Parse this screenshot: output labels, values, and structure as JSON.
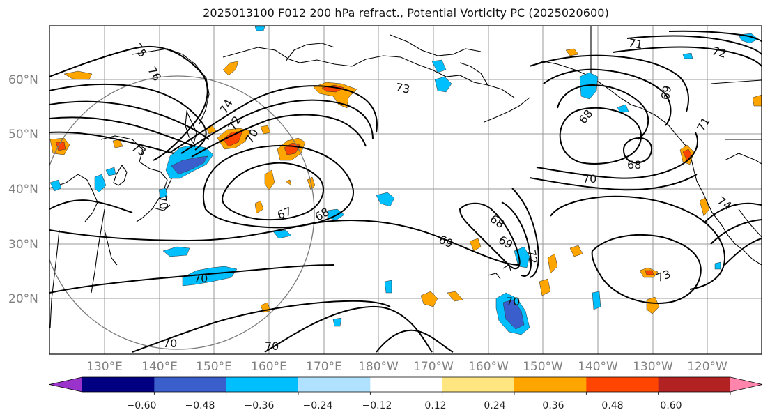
{
  "title": "2025013100 F012 200 hPa refract., Potential Vorticity PC (2025020600)",
  "map": {
    "lat_labels": [
      "60°N",
      "50°N",
      "40°N",
      "30°N",
      "20°N"
    ],
    "lon_labels": [
      "130°E",
      "140°E",
      "150°E",
      "160°E",
      "170°E",
      "180°W",
      "170°W",
      "160°W",
      "150°W",
      "140°W",
      "130°W",
      "120°W"
    ],
    "contour_labels": [
      "75",
      "76",
      "74",
      "72",
      "73",
      "70",
      "67",
      "68",
      "69",
      "70",
      "73",
      "71",
      "72",
      "69",
      "68",
      "68",
      "70",
      "71",
      "74",
      "68",
      "69",
      "72",
      "73",
      "70",
      "70",
      "70",
      "70"
    ]
  },
  "colorbar": {
    "ticks": [
      "−0.60",
      "−0.48",
      "−0.36",
      "−0.24",
      "−0.12",
      "0.12",
      "0.24",
      "0.36",
      "0.48",
      "0.60"
    ],
    "bins": [
      {
        "color": "#9933cc"
      },
      {
        "color": "#000080"
      },
      {
        "color": "#3a5fcd"
      },
      {
        "color": "#00bfff"
      },
      {
        "color": "#b0e2ff"
      },
      {
        "color": "#ffffff"
      },
      {
        "color": "#ffe680"
      },
      {
        "color": "#ffa500"
      },
      {
        "color": "#ff4500"
      },
      {
        "color": "#b22222"
      },
      {
        "color": "#ff85ad"
      }
    ]
  }
}
